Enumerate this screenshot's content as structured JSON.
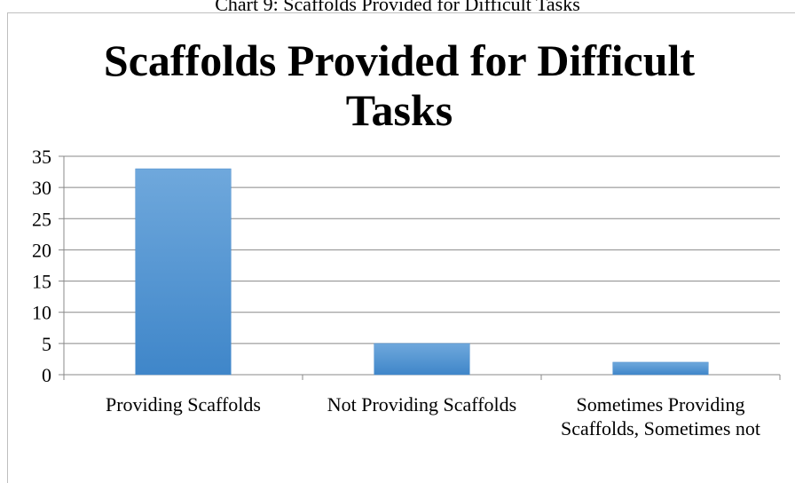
{
  "caption": "Chart 9: Scaffolds Provided for Difficult Tasks",
  "chart_data": {
    "type": "bar",
    "title": "Scaffolds Provided for Difficult Tasks",
    "categories": [
      "Providing Scaffolds",
      "Not Providing Scaffolds",
      "Sometimes Providing Scaffolds, Sometimes not"
    ],
    "values": [
      33,
      5,
      2
    ],
    "ylim": [
      0,
      35
    ],
    "yticks": [
      0,
      5,
      10,
      15,
      20,
      25,
      30,
      35
    ],
    "grid": true,
    "bar_color": "#5b9bd5"
  }
}
